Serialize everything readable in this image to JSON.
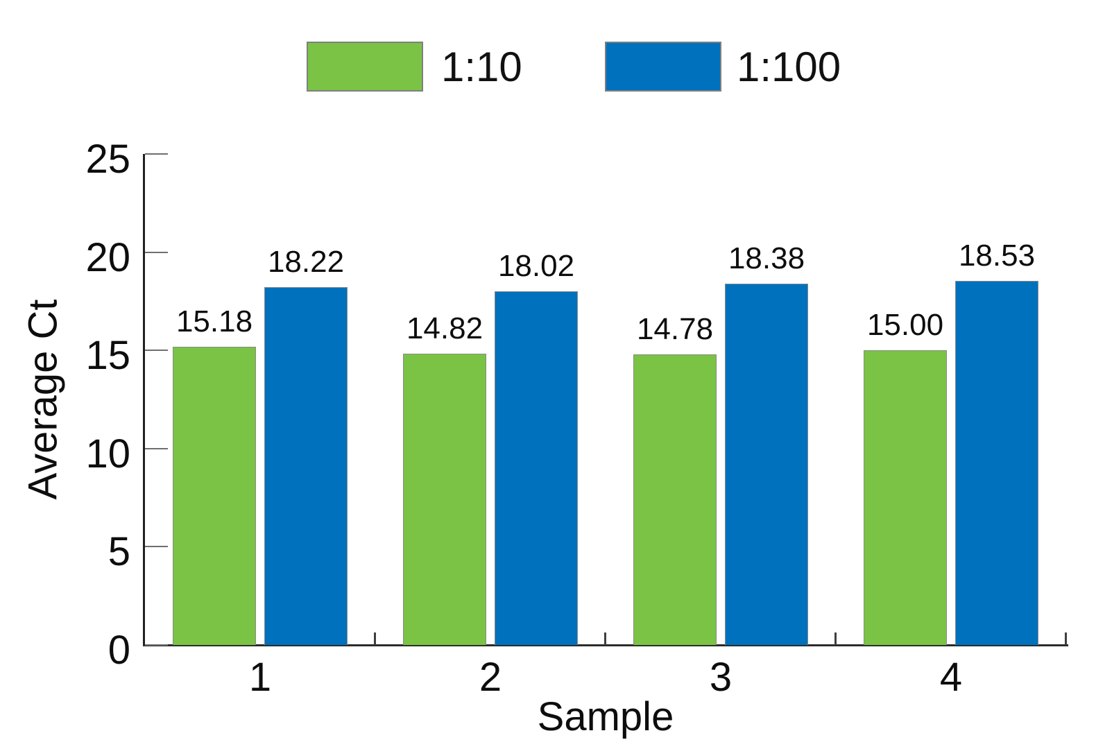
{
  "chart_data": {
    "type": "bar",
    "categories": [
      "1",
      "2",
      "3",
      "4"
    ],
    "series": [
      {
        "name": "1:10",
        "color": "#7AC344",
        "values": [
          15.18,
          14.82,
          14.78,
          15.0
        ],
        "labels": [
          "15.18",
          "14.82",
          "14.78",
          "15.00"
        ]
      },
      {
        "name": "1:100",
        "color": "#0071BC",
        "values": [
          18.22,
          18.02,
          18.38,
          18.53
        ],
        "labels": [
          "18.22",
          "18.02",
          "18.38",
          "18.53"
        ]
      }
    ],
    "title": "",
    "xlabel": "Sample",
    "ylabel": "Average Ct",
    "ylim": [
      0,
      25
    ],
    "yticks": [
      "0",
      "5",
      "10",
      "15",
      "20",
      "25"
    ],
    "grid": false,
    "legend_position": "top",
    "bar_value_labels_shown": true
  },
  "legend": {
    "items": [
      {
        "label": "1:10",
        "color": "#7AC344"
      },
      {
        "label": "1:100",
        "color": "#0071BC"
      }
    ]
  }
}
